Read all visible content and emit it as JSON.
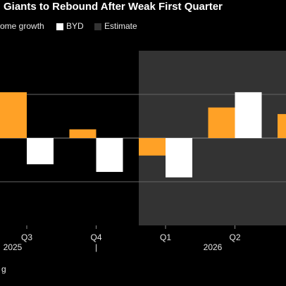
{
  "chart_data": {
    "type": "bar",
    "title": "Giants to Rebound After Weak First Quarter",
    "source": "g",
    "categories": [
      "Q3",
      "Q4",
      "Q1",
      "Q2",
      null
    ],
    "group_labels": [
      "2025",
      "|",
      "2026"
    ],
    "series": [
      {
        "name": "ome growth",
        "color": "#ffa126",
        "values": [
          21,
          4,
          -8,
          14,
          11
        ]
      },
      {
        "name": "BYD",
        "color": "#ffffff",
        "values": [
          -12,
          -15.5,
          -18,
          21,
          null
        ]
      }
    ],
    "estimate": {
      "name": "Estimate",
      "color": "#333333",
      "from_category": 2
    },
    "ylim": [
      -40,
      40
    ],
    "yticks": [
      -20,
      0,
      20
    ],
    "grid": true
  }
}
